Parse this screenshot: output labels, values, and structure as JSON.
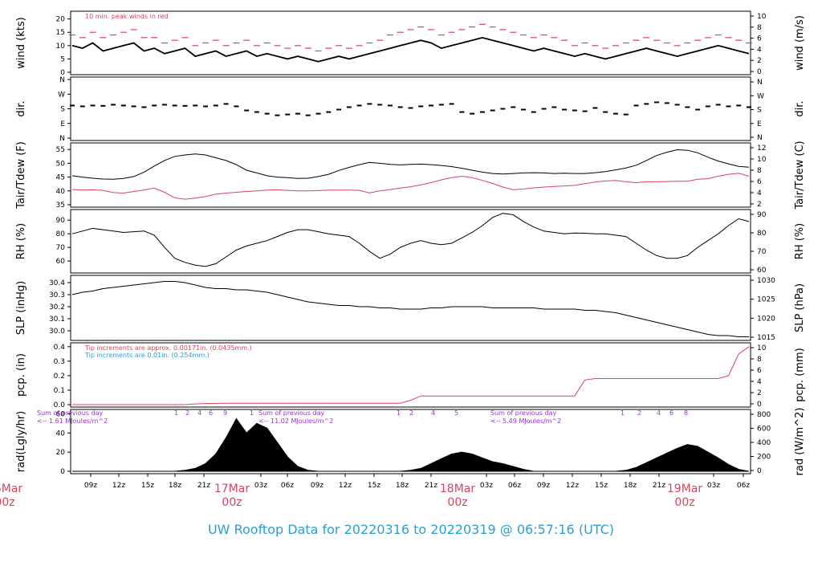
{
  "title": "UW Rooftop Data for 20220316  to  20220319 @ 06:57:16  (UTC)",
  "colors": {
    "title": "#2a9fd6",
    "day": "#d6455e",
    "peak": "#d6455e",
    "tair": "#000000",
    "tdew": "#d6455e",
    "pcp_note1": "#d6455e",
    "pcp_note2": "#2a9fd6",
    "solar_note": "#9b30d9"
  },
  "chart_data": [
    {
      "type": "line",
      "name": "wind",
      "ylabel_left": "wind (kts)",
      "ylabel_right": "wind (m/s)",
      "yticks_left": [
        0,
        5,
        10,
        15,
        20
      ],
      "ylim_left": [
        0,
        22
      ],
      "yticks_right": [
        0,
        2,
        4,
        6,
        8,
        10
      ],
      "annotation": "10 min. peak winds in red",
      "series": [
        {
          "values": [
            10,
            9,
            11,
            8,
            9,
            10,
            11,
            8,
            9,
            7,
            8,
            9,
            6,
            7,
            8,
            6,
            7,
            8,
            6,
            7,
            6,
            5,
            6,
            5,
            4,
            5,
            6,
            5,
            6,
            7,
            8,
            9,
            10,
            11,
            12,
            11,
            9,
            10,
            11,
            12,
            13,
            12,
            11,
            10,
            9,
            8,
            9,
            8,
            7,
            6,
            7,
            6,
            5,
            6,
            7,
            8,
            9,
            8,
            7,
            6,
            7,
            8,
            9,
            10,
            9,
            8,
            7
          ]
        },
        {
          "values": [
            14,
            13,
            15,
            13,
            14,
            15,
            16,
            13,
            13,
            11,
            12,
            13,
            10,
            11,
            12,
            10,
            11,
            12,
            10,
            11,
            10,
            9,
            10,
            9,
            8,
            9,
            10,
            9,
            10,
            11,
            12,
            14,
            15,
            16,
            17,
            16,
            14,
            15,
            16,
            17,
            18,
            17,
            16,
            15,
            14,
            13,
            14,
            13,
            12,
            10,
            11,
            10,
            9,
            10,
            11,
            12,
            13,
            12,
            11,
            10,
            11,
            12,
            13,
            14,
            13,
            12,
            11
          ]
        }
      ]
    },
    {
      "type": "scatter",
      "name": "dir",
      "ylabel_left": "dir.",
      "ylabel_right": "dir.",
      "yticks_left": [
        "N",
        "E",
        "S",
        "W",
        "N"
      ],
      "yticks_right": [
        "N",
        "E",
        "S",
        "W",
        "N"
      ],
      "ylim": [
        0,
        360
      ],
      "values": [
        200,
        195,
        200,
        198,
        205,
        200,
        195,
        190,
        200,
        205,
        200,
        198,
        200,
        195,
        200,
        210,
        195,
        170,
        160,
        150,
        140,
        145,
        150,
        140,
        150,
        160,
        175,
        190,
        200,
        210,
        205,
        200,
        190,
        185,
        195,
        200,
        205,
        210,
        160,
        150,
        160,
        170,
        180,
        190,
        175,
        160,
        180,
        190,
        175,
        170,
        165,
        185,
        160,
        150,
        145,
        200,
        210,
        220,
        215,
        205,
        190,
        175,
        195,
        205,
        195,
        200,
        190
      ]
    },
    {
      "type": "line",
      "name": "temp",
      "ylabel_left": "Tair/Tdew (F)",
      "ylabel_right": "Tair/Tdew (C)",
      "yticks_left": [
        35,
        40,
        45,
        50,
        55
      ],
      "ylim_left": [
        35,
        56.5
      ],
      "yticks_right": [
        2,
        4,
        6,
        8,
        10,
        12
      ],
      "series": [
        {
          "values": [
            45.5,
            45,
            44.6,
            44.3,
            44.2,
            44.5,
            45.2,
            46.8,
            49,
            51,
            52.5,
            53,
            53.4,
            53,
            52,
            51,
            49.5,
            47.5,
            46.5,
            45.5,
            45,
            44.8,
            44.5,
            44.6,
            45.2,
            46,
            47.4,
            48.5,
            49.5,
            50.3,
            50,
            49.6,
            49.4,
            49.6,
            49.7,
            49.5,
            49.2,
            48.8,
            48.2,
            47.5,
            46.8,
            46.3,
            46.1,
            46.3,
            46.5,
            46.6,
            46.5,
            46.3,
            46.4,
            46.3,
            46.3,
            46.6,
            47,
            47.6,
            48.3,
            49.3,
            51,
            52.8,
            54,
            54.9,
            54.7,
            53.8,
            52.2,
            50.8,
            49.8,
            48.9,
            48.6
          ]
        },
        {
          "values": [
            40.5,
            40.3,
            40.4,
            40.2,
            39.4,
            39.2,
            39.8,
            40.3,
            41,
            39.5,
            37.5,
            37,
            37.4,
            38,
            38.8,
            39.2,
            39.5,
            39.8,
            40,
            40.3,
            40.4,
            40.2,
            40,
            40,
            40.1,
            40.3,
            40.3,
            40.3,
            40.2,
            39.3,
            40,
            40.5,
            41,
            41.5,
            42.2,
            43,
            44,
            44.8,
            45.3,
            44.8,
            43.8,
            42.7,
            41.4,
            40.4,
            40.7,
            41.1,
            41.4,
            41.6,
            41.8,
            42,
            42.6,
            43.2,
            43.6,
            43.8,
            43.3,
            43,
            43.3,
            43.3,
            43.4,
            43.5,
            43.5,
            44.2,
            44.4,
            45.3,
            46,
            46.4,
            45.3
          ]
        }
      ]
    },
    {
      "type": "line",
      "name": "rh",
      "ylabel_left": "RH (%)",
      "ylabel_right": "RH (%)",
      "yticks_left": [
        60,
        70,
        80,
        90
      ],
      "ylim_left": [
        53,
        96
      ],
      "yticks_right": [
        60,
        70,
        80,
        90
      ],
      "values": [
        80,
        82,
        84,
        83,
        82,
        81,
        81.5,
        82,
        79,
        70,
        62,
        59,
        57,
        56,
        58,
        63,
        68,
        71,
        73,
        75,
        78,
        81,
        83,
        83,
        81.5,
        80,
        79,
        78,
        73,
        67,
        62,
        65,
        70,
        73,
        75,
        73,
        72,
        73,
        77,
        81,
        86,
        92,
        95,
        94,
        89,
        85,
        82,
        81,
        80,
        80.5,
        80.4,
        80,
        80,
        79,
        78,
        73,
        68,
        64,
        62,
        62,
        64,
        70,
        75,
        80,
        86,
        91,
        89
      ]
    },
    {
      "type": "line",
      "name": "pressure",
      "ylabel_left": "SLP (inHg)",
      "ylabel_right": "SLP (hPa)",
      "yticks_left": [
        "30.0",
        "30.1",
        "30.2",
        "30.3",
        "30.4"
      ],
      "ylim_left": [
        29.94,
        30.44
      ],
      "yticks_right": [
        1015,
        1020,
        1025,
        1030
      ],
      "values": [
        30.3,
        30.32,
        30.33,
        30.35,
        30.36,
        30.37,
        30.38,
        30.39,
        30.4,
        30.41,
        30.41,
        30.4,
        30.38,
        30.36,
        30.35,
        30.35,
        30.34,
        30.34,
        30.33,
        30.32,
        30.3,
        30.28,
        30.26,
        30.24,
        30.23,
        30.22,
        30.21,
        30.21,
        30.2,
        30.2,
        30.19,
        30.19,
        30.18,
        30.18,
        30.18,
        30.19,
        30.19,
        30.2,
        30.2,
        30.2,
        30.2,
        30.19,
        30.19,
        30.19,
        30.19,
        30.19,
        30.18,
        30.18,
        30.18,
        30.18,
        30.17,
        30.17,
        30.16,
        30.15,
        30.13,
        30.11,
        30.09,
        30.07,
        30.05,
        30.03,
        30.01,
        29.99,
        29.97,
        29.96,
        29.96,
        29.95,
        29.95
      ]
    },
    {
      "type": "line",
      "name": "precip",
      "ylabel_left": "pcp. (in)",
      "ylabel_right": "pcp. (mm)",
      "yticks_left": [
        "0.0",
        "0.1",
        "0.2",
        "0.3",
        "0.4"
      ],
      "ylim_left": [
        0,
        0.41
      ],
      "yticks_right": [
        0,
        2,
        4,
        6,
        8,
        10
      ],
      "annotation_1": "Tip increments are approx. 0.00171in. (0.0435mm.)",
      "annotation_2": "Tip increments are 0.01in. (0.254mm.)",
      "values": [
        0,
        0,
        0,
        0,
        0,
        0,
        0,
        0,
        0,
        0,
        0,
        0,
        0.005,
        0.008,
        0.009,
        0.01,
        0.01,
        0.01,
        0.01,
        0.01,
        0.01,
        0.01,
        0.01,
        0.01,
        0.01,
        0.01,
        0.01,
        0.01,
        0.01,
        0.01,
        0.01,
        0.01,
        0.01,
        0.03,
        0.06,
        0.06,
        0.06,
        0.06,
        0.06,
        0.06,
        0.06,
        0.06,
        0.06,
        0.06,
        0.06,
        0.06,
        0.06,
        0.06,
        0.06,
        0.06,
        0.17,
        0.18,
        0.18,
        0.18,
        0.18,
        0.18,
        0.18,
        0.18,
        0.18,
        0.18,
        0.18,
        0.18,
        0.18,
        0.18,
        0.2,
        0.35,
        0.4
      ]
    },
    {
      "type": "area",
      "name": "solar",
      "ylabel_left": "rad(Lgly/hr)",
      "ylabel_right": "rad (W/m^2)",
      "yticks_left": [
        0,
        20,
        40,
        60
      ],
      "ylim_left": [
        0,
        62
      ],
      "yticks_right": [
        0,
        200,
        400,
        600,
        800
      ],
      "daily_totals": [
        {
          "line1": "Sum of previous day",
          "line2": "<-- 1.61 MJoules/m^2"
        },
        {
          "line1": "Sum of previous day",
          "line2": "<-- 11.02 MJoules/m^2"
        },
        {
          "line1": "Sum of previous day",
          "line2": "<-- 5.49 MJoules/m^2"
        }
      ],
      "hour_marks": [
        "1",
        "2",
        "4",
        "6",
        "9",
        "1",
        "1",
        "2",
        "4",
        "5",
        "1",
        "2",
        "4",
        "6",
        "8"
      ],
      "values": [
        0,
        0,
        0,
        0,
        0,
        0,
        0,
        0,
        0,
        0,
        0,
        1,
        3,
        8,
        18,
        35,
        55,
        40,
        50,
        45,
        30,
        15,
        5,
        1,
        0,
        0,
        0,
        0,
        0,
        0,
        0,
        0,
        0,
        1,
        3,
        8,
        13,
        18,
        20,
        18,
        14,
        10,
        8,
        5,
        2,
        0,
        0,
        0,
        0,
        0,
        0,
        0,
        0,
        0,
        1,
        4,
        9,
        14,
        19,
        24,
        28,
        26,
        20,
        14,
        7,
        2,
        0
      ]
    }
  ],
  "xaxis": {
    "hour_labels": [
      "09z",
      "12z",
      "15z",
      "18z",
      "21z",
      "03z",
      "06z",
      "09z",
      "12z",
      "15z",
      "18z",
      "21z",
      "03z",
      "06z",
      "09z",
      "12z",
      "15z",
      "18z",
      "21z",
      "03z",
      "06z"
    ],
    "day_labels": [
      {
        "date": "16Mar",
        "hour": "00z"
      },
      {
        "date": "17Mar",
        "hour": "00z"
      },
      {
        "date": "18Mar",
        "hour": "00z"
      },
      {
        "date": "19Mar",
        "hour": "00z"
      }
    ]
  }
}
